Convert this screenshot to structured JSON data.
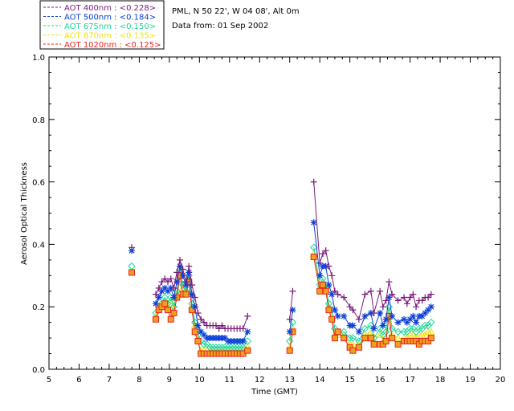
{
  "chart_data": {
    "type": "scatter",
    "title_lines": [
      "PML, N 50 22', W 04 08', Alt 0m",
      "Data from: 01 Sep 2002"
    ],
    "xlabel": "Time (GMT)",
    "ylabel": "Aerosol Optical Thickness",
    "xlim": [
      5,
      20
    ],
    "ylim": [
      0.0,
      1.0
    ],
    "xticks": [
      5,
      6,
      7,
      8,
      9,
      10,
      11,
      12,
      13,
      14,
      15,
      16,
      17,
      18,
      19,
      20
    ],
    "yticks": [
      "0.0",
      "0.2",
      "0.4",
      "0.6",
      "0.8",
      "1.0"
    ],
    "grid": false,
    "legend_position": "top-left",
    "x": [
      7.75,
      8.55,
      8.65,
      8.75,
      8.85,
      8.95,
      9.05,
      9.15,
      9.25,
      9.35,
      9.45,
      9.55,
      9.65,
      9.75,
      9.85,
      9.95,
      10.05,
      10.15,
      10.25,
      10.35,
      10.45,
      10.55,
      10.65,
      10.75,
      10.85,
      10.95,
      11.05,
      11.15,
      11.25,
      11.35,
      11.45,
      11.6,
      13.0,
      13.1,
      13.8,
      14.0,
      14.1,
      14.2,
      14.3,
      14.4,
      14.5,
      14.6,
      14.8,
      15.0,
      15.1,
      15.3,
      15.5,
      15.7,
      15.8,
      16.0,
      16.1,
      16.2,
      16.3,
      16.4,
      16.6,
      16.8,
      16.9,
      17.0,
      17.1,
      17.2,
      17.3,
      17.4,
      17.5,
      17.6,
      17.7
    ],
    "series": [
      {
        "name": "AOT 400nm",
        "mean_label": "AOT  400nm : <0.228>",
        "color": "#7a1a7a",
        "marker": "plus",
        "values": [
          0.39,
          0.24,
          0.26,
          0.28,
          0.29,
          0.28,
          0.29,
          0.26,
          0.31,
          0.35,
          0.32,
          0.28,
          0.33,
          0.27,
          0.23,
          0.18,
          0.16,
          0.15,
          0.14,
          0.14,
          0.14,
          0.14,
          0.13,
          0.14,
          0.13,
          0.13,
          0.13,
          0.13,
          0.13,
          0.13,
          0.13,
          0.17,
          0.16,
          0.25,
          0.6,
          0.34,
          0.37,
          0.38,
          0.33,
          0.3,
          0.25,
          0.24,
          0.23,
          0.2,
          0.19,
          0.16,
          0.24,
          0.25,
          0.18,
          0.25,
          0.2,
          0.22,
          0.28,
          0.24,
          0.22,
          0.23,
          0.21,
          0.23,
          0.24,
          0.2,
          0.22,
          0.22,
          0.23,
          0.23,
          0.24
        ]
      },
      {
        "name": "AOT 500nm",
        "mean_label": "AOT  500nm : <0.184>",
        "color": "#0b3fd6",
        "marker": "asterisk",
        "values": [
          0.38,
          0.21,
          0.23,
          0.25,
          0.26,
          0.25,
          0.26,
          0.23,
          0.28,
          0.33,
          0.3,
          0.27,
          0.31,
          0.24,
          0.2,
          0.14,
          0.12,
          0.11,
          0.1,
          0.1,
          0.1,
          0.1,
          0.1,
          0.1,
          0.1,
          0.09,
          0.09,
          0.09,
          0.09,
          0.09,
          0.09,
          0.12,
          0.12,
          0.19,
          0.47,
          0.3,
          0.33,
          0.33,
          0.27,
          0.24,
          0.19,
          0.17,
          0.17,
          0.14,
          0.14,
          0.12,
          0.17,
          0.18,
          0.13,
          0.18,
          0.14,
          0.16,
          0.23,
          0.17,
          0.15,
          0.16,
          0.15,
          0.16,
          0.17,
          0.15,
          0.17,
          0.17,
          0.18,
          0.19,
          0.2
        ]
      },
      {
        "name": "AOT 675nm",
        "mean_label": "AOT  675nm : <0.150>",
        "color": "#19d69a",
        "marker": "diamond",
        "values": [
          0.33,
          0.18,
          0.2,
          0.21,
          0.23,
          0.21,
          0.23,
          0.2,
          0.25,
          0.32,
          0.27,
          0.25,
          0.3,
          0.21,
          0.15,
          0.11,
          0.09,
          0.08,
          0.08,
          0.07,
          0.07,
          0.07,
          0.07,
          0.07,
          0.07,
          0.07,
          0.07,
          0.07,
          0.07,
          0.07,
          0.07,
          0.09,
          0.09,
          0.15,
          0.39,
          0.27,
          0.29,
          0.27,
          0.21,
          0.19,
          0.13,
          0.12,
          0.12,
          0.1,
          0.1,
          0.09,
          0.13,
          0.14,
          0.1,
          0.13,
          0.11,
          0.12,
          0.2,
          0.13,
          0.12,
          0.12,
          0.12,
          0.13,
          0.13,
          0.12,
          0.13,
          0.13,
          0.14,
          0.14,
          0.15
        ]
      },
      {
        "name": "AOT 870nm",
        "mean_label": "AOT  870nm : <0.135>",
        "color": "#f0e21c",
        "marker": "triangle",
        "values": [
          0.31,
          0.17,
          0.2,
          0.21,
          0.22,
          0.2,
          0.22,
          0.19,
          0.24,
          0.31,
          0.26,
          0.25,
          0.29,
          0.2,
          0.14,
          0.1,
          0.06,
          0.06,
          0.06,
          0.06,
          0.06,
          0.06,
          0.06,
          0.06,
          0.06,
          0.06,
          0.06,
          0.06,
          0.06,
          0.06,
          0.06,
          0.07,
          0.07,
          0.13,
          0.37,
          0.26,
          0.28,
          0.26,
          0.2,
          0.17,
          0.11,
          0.11,
          0.11,
          0.08,
          0.08,
          0.08,
          0.11,
          0.12,
          0.09,
          0.11,
          0.09,
          0.1,
          0.18,
          0.11,
          0.1,
          0.1,
          0.1,
          0.11,
          0.11,
          0.1,
          0.11,
          0.11,
          0.11,
          0.12,
          0.12
        ]
      },
      {
        "name": "AOT 1020nm",
        "mean_label": "AOT 1020nm : <0.125>",
        "color": "#e8231c",
        "marker": "square",
        "values": [
          0.31,
          0.16,
          0.19,
          0.2,
          0.21,
          0.19,
          0.16,
          0.18,
          0.23,
          0.3,
          0.24,
          0.24,
          0.28,
          0.19,
          0.12,
          0.09,
          0.05,
          0.05,
          0.05,
          0.05,
          0.05,
          0.05,
          0.05,
          0.05,
          0.05,
          0.05,
          0.05,
          0.05,
          0.05,
          0.05,
          0.05,
          0.06,
          0.06,
          0.12,
          0.36,
          0.25,
          0.27,
          0.25,
          0.19,
          0.16,
          0.1,
          0.12,
          0.1,
          0.07,
          0.06,
          0.07,
          0.1,
          0.1,
          0.08,
          0.08,
          0.08,
          0.09,
          0.17,
          0.1,
          0.08,
          0.09,
          0.09,
          0.09,
          0.09,
          0.09,
          0.08,
          0.09,
          0.09,
          0.09,
          0.1
        ]
      }
    ]
  }
}
